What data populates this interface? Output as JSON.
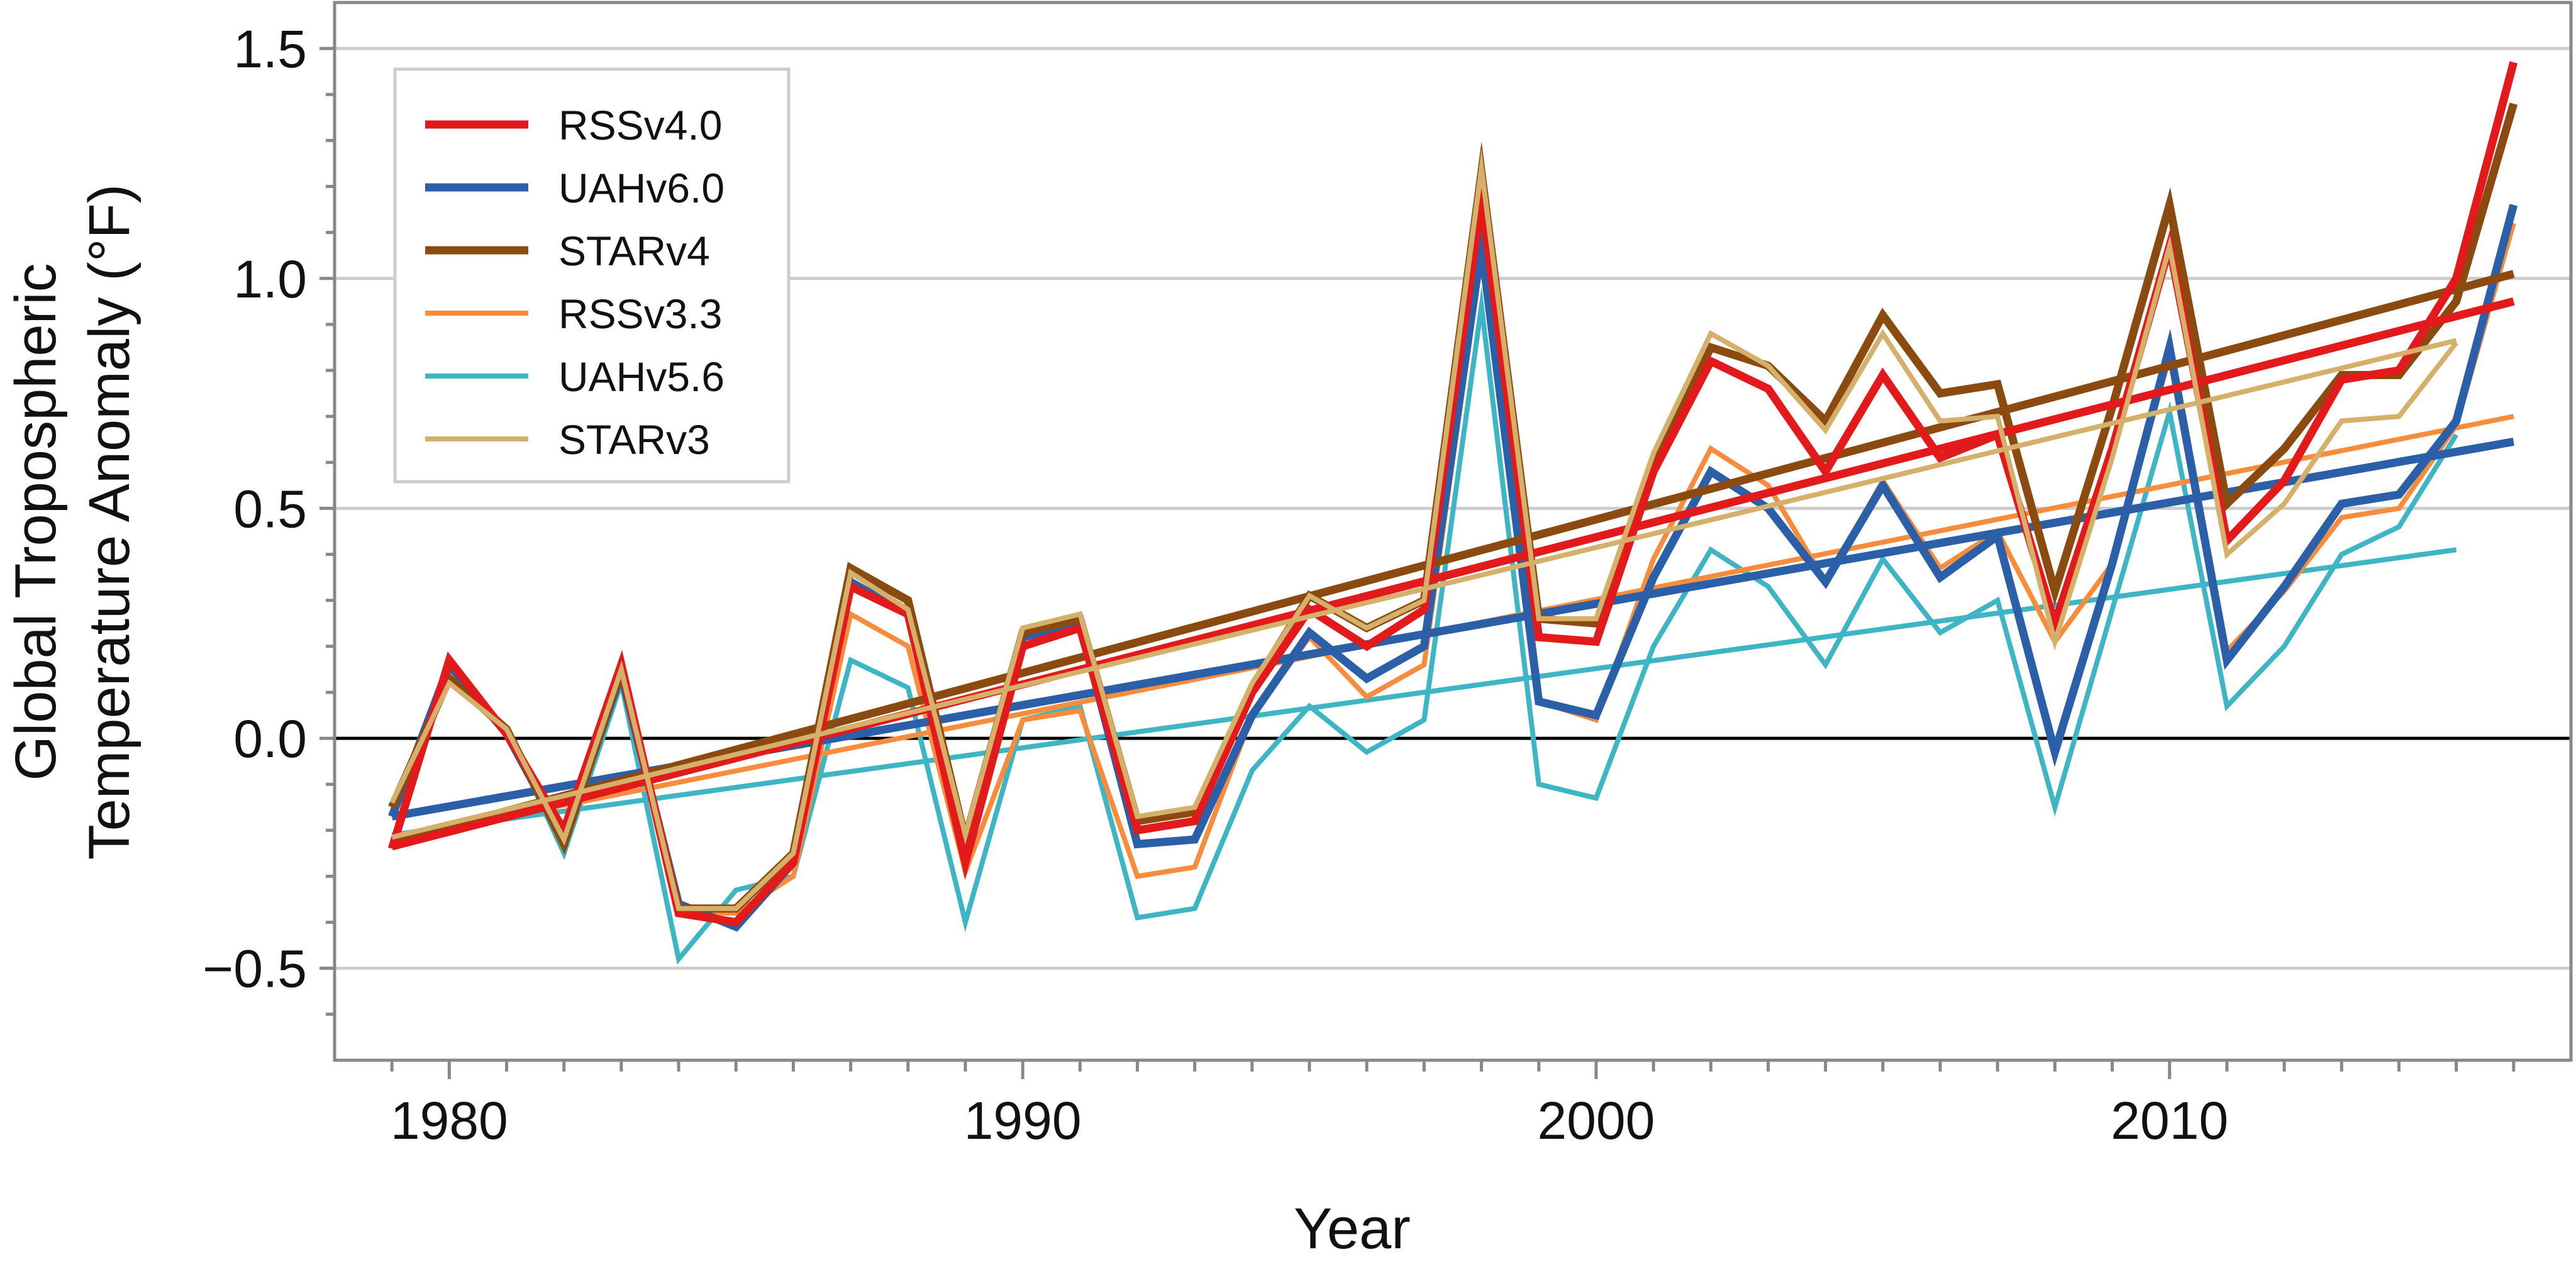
{
  "chart_data": {
    "type": "line",
    "xlabel": "Year",
    "ylabel_lines": [
      "Global Tropospheric",
      "Temperature Anomaly (°F)"
    ],
    "xlim": [
      1978,
      2017
    ],
    "ylim": [
      -0.7,
      1.6
    ],
    "x_ticks": [
      "1980",
      "1990",
      "2000",
      "2010"
    ],
    "y_ticks": [
      "1.5",
      "1.0",
      "0.5",
      "0.0",
      "−0.5"
    ],
    "y_tick_values": [
      1.5,
      1.0,
      0.5,
      0.0,
      -0.5
    ],
    "grid": "horizontal",
    "zero_line": true,
    "legend_position": "top-left",
    "colors": {
      "RSSv4.0": "#e31a1c",
      "UAHv6.0": "#2b5fa8",
      "STARv4": "#8b4a0f",
      "RSSv3.3": "#f68c3c",
      "UAHv5.6": "#3eb5c4",
      "STARv3": "#d5b06b",
      "grid": "#cccccc",
      "axis": "#888888"
    },
    "series": [
      {
        "name": "RSSv4.0",
        "x": [
          1979,
          1980,
          1981,
          1982,
          1983,
          1984,
          1985,
          1986,
          1987,
          1988,
          1989,
          1990,
          1991,
          1992,
          1993,
          1994,
          1995,
          1996,
          1997,
          1998,
          1999,
          2000,
          2001,
          2002,
          2003,
          2004,
          2005,
          2006,
          2007,
          2008,
          2009,
          2010,
          2011,
          2012,
          2013,
          2014,
          2015,
          2016
        ],
        "values": [
          -0.24,
          0.17,
          0.01,
          -0.2,
          0.16,
          -0.38,
          -0.4,
          -0.27,
          0.33,
          0.27,
          -0.27,
          0.2,
          0.24,
          -0.2,
          -0.18,
          0.1,
          0.28,
          0.2,
          0.28,
          1.17,
          0.22,
          0.21,
          0.58,
          0.82,
          0.76,
          0.58,
          0.79,
          0.61,
          0.66,
          0.25,
          0.63,
          1.07,
          0.43,
          0.56,
          0.78,
          0.8,
          1.0,
          1.47
        ],
        "trend": [
          -0.235,
          0.95
        ]
      },
      {
        "name": "UAHv6.0",
        "x": [
          1979,
          1980,
          1981,
          1982,
          1983,
          1984,
          1985,
          1986,
          1987,
          1988,
          1989,
          1990,
          1991,
          1992,
          1993,
          1994,
          1995,
          1996,
          1997,
          1998,
          1999,
          2000,
          2001,
          2002,
          2003,
          2004,
          2005,
          2006,
          2007,
          2008,
          2009,
          2010,
          2011,
          2012,
          2013,
          2014,
          2015,
          2016
        ],
        "values": [
          -0.17,
          0.16,
          0.01,
          -0.22,
          0.14,
          -0.36,
          -0.41,
          -0.27,
          0.34,
          0.27,
          -0.23,
          0.22,
          0.25,
          -0.23,
          -0.22,
          0.05,
          0.23,
          0.13,
          0.2,
          1.07,
          0.08,
          0.05,
          0.35,
          0.58,
          0.5,
          0.34,
          0.55,
          0.35,
          0.44,
          -0.03,
          0.38,
          0.85,
          0.17,
          0.33,
          0.51,
          0.53,
          0.69,
          1.16
        ],
        "trend": [
          -0.17,
          0.645
        ]
      },
      {
        "name": "STARv4",
        "x": [
          1979,
          1980,
          1981,
          1982,
          1983,
          1984,
          1985,
          1986,
          1987,
          1988,
          1989,
          1990,
          1991,
          1992,
          1993,
          1994,
          1995,
          1996,
          1997,
          1998,
          1999,
          2000,
          2001,
          2002,
          2003,
          2004,
          2005,
          2006,
          2007,
          2008,
          2009,
          2010,
          2011,
          2012,
          2013,
          2014,
          2015,
          2016
        ],
        "values": [
          -0.15,
          0.13,
          0.02,
          -0.23,
          0.15,
          -0.37,
          -0.37,
          -0.25,
          0.37,
          0.3,
          -0.22,
          0.23,
          0.26,
          -0.18,
          -0.16,
          0.11,
          0.31,
          0.24,
          0.3,
          1.23,
          0.26,
          0.25,
          0.6,
          0.85,
          0.81,
          0.69,
          0.92,
          0.75,
          0.77,
          0.32,
          0.72,
          1.16,
          0.51,
          0.63,
          0.79,
          0.79,
          0.95,
          1.38
        ],
        "trend": [
          -0.225,
          1.01
        ]
      },
      {
        "name": "RSSv3.3",
        "x": [
          1979,
          1980,
          1981,
          1982,
          1983,
          1984,
          1985,
          1986,
          1987,
          1988,
          1989,
          1990,
          1991,
          1992,
          1993,
          1994,
          1995,
          1996,
          1997,
          1998,
          1999,
          2000,
          2001,
          2002,
          2003,
          2004,
          2005,
          2006,
          2007,
          2008,
          2009,
          2010,
          2011,
          2012,
          2013,
          2014,
          2015,
          2016
        ],
        "values": [
          -0.16,
          0.14,
          0.02,
          -0.23,
          0.14,
          -0.38,
          -0.38,
          -0.3,
          0.27,
          0.2,
          -0.29,
          0.04,
          0.06,
          -0.3,
          -0.28,
          0.05,
          0.22,
          0.09,
          0.16,
          1.05,
          0.08,
          0.04,
          0.39,
          0.63,
          0.55,
          0.34,
          0.56,
          0.37,
          0.45,
          0.21,
          0.38,
          0.83,
          0.19,
          0.32,
          0.48,
          0.5,
          0.68,
          1.12
        ],
        "trend": [
          -0.22,
          0.7
        ]
      },
      {
        "name": "UAHv5.6",
        "x": [
          1979,
          1980,
          1981,
          1982,
          1983,
          1984,
          1985,
          1986,
          1987,
          1988,
          1989,
          1990,
          1991,
          1992,
          1993,
          1994,
          1995,
          1996,
          1997,
          1998,
          1999,
          2000,
          2001,
          2002,
          2003,
          2004,
          2005,
          2006,
          2007,
          2008,
          2009,
          2010,
          2011,
          2012,
          2013,
          2014,
          2015
        ],
        "values": [
          -0.14,
          0.13,
          0.02,
          -0.25,
          0.12,
          -0.48,
          -0.33,
          -0.3,
          0.17,
          0.11,
          -0.4,
          0.04,
          0.07,
          -0.39,
          -0.37,
          -0.07,
          0.07,
          -0.03,
          0.04,
          0.94,
          -0.1,
          -0.13,
          0.2,
          0.41,
          0.33,
          0.16,
          0.39,
          0.23,
          0.3,
          -0.15,
          0.28,
          0.71,
          0.07,
          0.2,
          0.4,
          0.46,
          0.66
        ],
        "trend": [
          -0.21,
          0.41
        ]
      },
      {
        "name": "STARv3",
        "x": [
          1979,
          1980,
          1981,
          1982,
          1983,
          1984,
          1985,
          1986,
          1987,
          1988,
          1989,
          1990,
          1991,
          1992,
          1993,
          1994,
          1995,
          1996,
          1997,
          1998,
          1999,
          2000,
          2001,
          2002,
          2003,
          2004,
          2005,
          2006,
          2007,
          2008,
          2009,
          2010,
          2011,
          2012,
          2013,
          2014,
          2015
        ],
        "values": [
          -0.14,
          0.12,
          0.02,
          -0.22,
          0.15,
          -0.37,
          -0.37,
          -0.25,
          0.36,
          0.28,
          -0.21,
          0.24,
          0.27,
          -0.17,
          -0.15,
          0.12,
          0.31,
          0.24,
          0.3,
          1.24,
          0.26,
          0.26,
          0.62,
          0.88,
          0.81,
          0.67,
          0.88,
          0.69,
          0.7,
          0.21,
          0.61,
          1.07,
          0.4,
          0.51,
          0.69,
          0.7,
          0.86
        ],
        "trend": [
          -0.215,
          0.865
        ]
      }
    ]
  }
}
